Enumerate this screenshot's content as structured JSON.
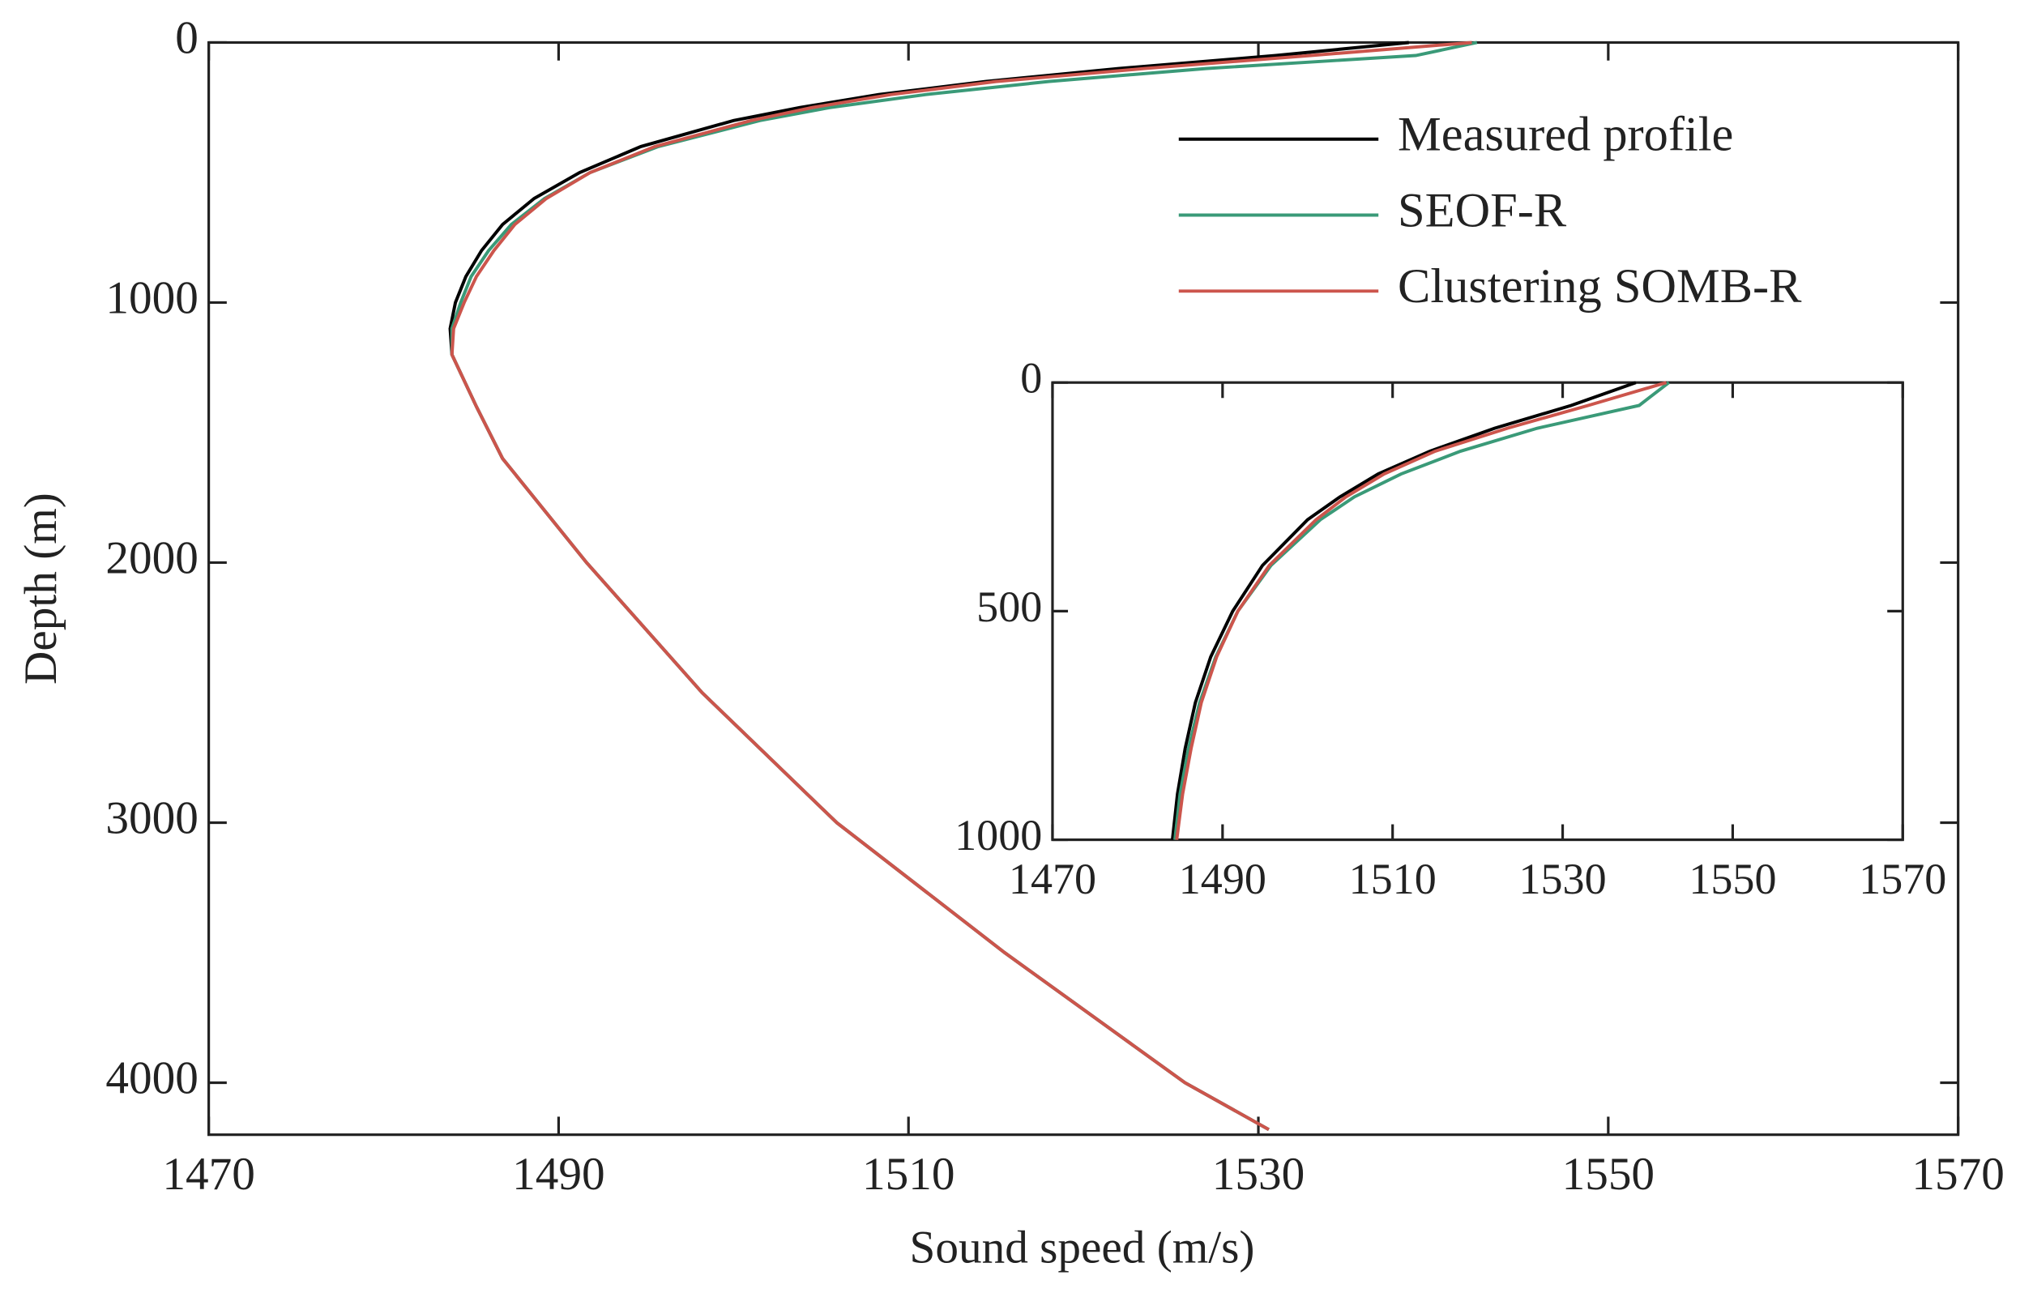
{
  "chart_data": [
    {
      "type": "line",
      "x_label": "Sound speed (m/s)",
      "y_label": "Depth (m)",
      "y_reversed": true,
      "xlim": [
        1470,
        1570
      ],
      "xticks": [
        1470,
        1490,
        1510,
        1530,
        1550,
        1570
      ],
      "ylim": [
        0,
        4200
      ],
      "yticks": [
        0,
        1000,
        2000,
        3000,
        4000
      ],
      "legend": "upper right",
      "y": [
        0,
        50,
        100,
        150,
        200,
        250,
        300,
        400,
        500,
        600,
        700,
        800,
        900,
        1000,
        1100,
        1200,
        1400,
        1600,
        2000,
        2500,
        3000,
        3500,
        4000,
        4180
      ],
      "series": [
        {
          "name": "Measured profile",
          "color": "#000000",
          "x": [
            1538.6,
            1531,
            1522,
            1514.4,
            1508.3,
            1503.8,
            1500,
            1494.7,
            1491.2,
            1488.6,
            1486.8,
            1485.6,
            1484.7,
            1484.1,
            1483.8,
            1483.9,
            1485.3,
            1486.8,
            1491.6,
            1498.2,
            1505.9,
            1515.5,
            1525.8,
            1530.6
          ]
        },
        {
          "name": "SEOF-R",
          "color": "#3a9a78",
          "x": [
            1542.5,
            1539,
            1527,
            1518,
            1511,
            1505.5,
            1501.5,
            1495.7,
            1491.8,
            1489.2,
            1487.3,
            1486,
            1485,
            1484.4,
            1483.9,
            1483.9,
            1485.3,
            1486.8,
            1491.6,
            1498.2,
            1505.9,
            1515.5,
            1525.8,
            1530.6
          ]
        },
        {
          "name": "Clustering SOMB-R",
          "color": "#cc554c",
          "x": [
            1542.2,
            1533,
            1523.5,
            1515,
            1509,
            1504.5,
            1501,
            1495.5,
            1491.8,
            1489.3,
            1487.5,
            1486.3,
            1485.3,
            1484.6,
            1484,
            1483.9,
            1485.3,
            1486.8,
            1491.6,
            1498.2,
            1505.9,
            1515.5,
            1525.8,
            1530.6
          ]
        }
      ]
    },
    {
      "type": "line",
      "y_reversed": true,
      "xlim": [
        1470,
        1570
      ],
      "xticks": [
        1470,
        1490,
        1510,
        1530,
        1550,
        1570
      ],
      "ylim": [
        0,
        1000
      ],
      "yticks": [
        0,
        500,
        1000
      ],
      "y": [
        0,
        50,
        100,
        150,
        200,
        250,
        300,
        400,
        500,
        600,
        700,
        800,
        900,
        1000
      ],
      "series": [
        {
          "color": "#000000",
          "x": [
            1538.6,
            1531,
            1522,
            1514.4,
            1508.3,
            1503.8,
            1500,
            1494.7,
            1491.2,
            1488.6,
            1486.8,
            1485.6,
            1484.7,
            1484.1
          ]
        },
        {
          "color": "#3a9a78",
          "x": [
            1542.5,
            1539,
            1527,
            1518,
            1511,
            1505.5,
            1501.5,
            1495.7,
            1491.8,
            1489.2,
            1487.3,
            1486,
            1485,
            1484.4
          ]
        },
        {
          "color": "#cc554c",
          "x": [
            1542.2,
            1533,
            1523.5,
            1515,
            1509,
            1504.5,
            1501,
            1495.5,
            1491.8,
            1489.3,
            1487.5,
            1486.3,
            1485.3,
            1484.6
          ]
        }
      ]
    }
  ]
}
